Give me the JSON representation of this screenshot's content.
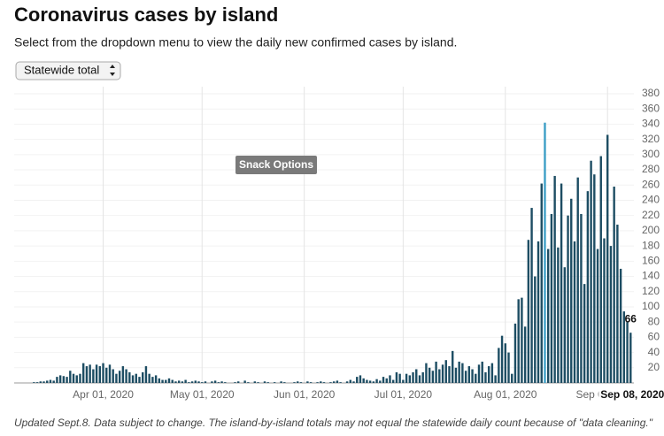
{
  "header": {
    "title": "Coronavirus cases by island",
    "subtitle": "Select from the dropdown menu to view the daily new confirmed cases by island."
  },
  "dropdown": {
    "selected": "Statewide total"
  },
  "snack_button": "Snack Options",
  "footnote": "Updated Sept.8. Data subject to change. The island-by-island totals may not equal the statewide daily count because of \"data cleaning.\"",
  "chart_data": {
    "type": "bar",
    "x": [
      "2020-03-06",
      "2020-03-07",
      "2020-03-08",
      "2020-03-09",
      "2020-03-10",
      "2020-03-11",
      "2020-03-12",
      "2020-03-13",
      "2020-03-14",
      "2020-03-15",
      "2020-03-16",
      "2020-03-17",
      "2020-03-18",
      "2020-03-19",
      "2020-03-20",
      "2020-03-21",
      "2020-03-22",
      "2020-03-23",
      "2020-03-24",
      "2020-03-25",
      "2020-03-26",
      "2020-03-27",
      "2020-03-28",
      "2020-03-29",
      "2020-03-30",
      "2020-03-31",
      "2020-04-01",
      "2020-04-02",
      "2020-04-03",
      "2020-04-04",
      "2020-04-05",
      "2020-04-06",
      "2020-04-07",
      "2020-04-08",
      "2020-04-09",
      "2020-04-10",
      "2020-04-11",
      "2020-04-12",
      "2020-04-13",
      "2020-04-14",
      "2020-04-15",
      "2020-04-16",
      "2020-04-17",
      "2020-04-18",
      "2020-04-19",
      "2020-04-20",
      "2020-04-21",
      "2020-04-22",
      "2020-04-23",
      "2020-04-24",
      "2020-04-25",
      "2020-04-26",
      "2020-04-27",
      "2020-04-28",
      "2020-04-29",
      "2020-04-30",
      "2020-05-01",
      "2020-05-02",
      "2020-05-03",
      "2020-05-04",
      "2020-05-05",
      "2020-05-06",
      "2020-05-07",
      "2020-05-08",
      "2020-05-09",
      "2020-05-10",
      "2020-05-11",
      "2020-05-12",
      "2020-05-13",
      "2020-05-14",
      "2020-05-15",
      "2020-05-16",
      "2020-05-17",
      "2020-05-18",
      "2020-05-19",
      "2020-05-20",
      "2020-05-21",
      "2020-05-22",
      "2020-05-23",
      "2020-05-24",
      "2020-05-25",
      "2020-05-26",
      "2020-05-27",
      "2020-05-28",
      "2020-05-29",
      "2020-05-30",
      "2020-05-31",
      "2020-06-01",
      "2020-06-02",
      "2020-06-03",
      "2020-06-04",
      "2020-06-05",
      "2020-06-06",
      "2020-06-07",
      "2020-06-08",
      "2020-06-09",
      "2020-06-10",
      "2020-06-11",
      "2020-06-12",
      "2020-06-13",
      "2020-06-14",
      "2020-06-15",
      "2020-06-16",
      "2020-06-17",
      "2020-06-18",
      "2020-06-19",
      "2020-06-20",
      "2020-06-21",
      "2020-06-22",
      "2020-06-23",
      "2020-06-24",
      "2020-06-25",
      "2020-06-26",
      "2020-06-27",
      "2020-06-28",
      "2020-06-29",
      "2020-06-30",
      "2020-07-01",
      "2020-07-02",
      "2020-07-03",
      "2020-07-04",
      "2020-07-05",
      "2020-07-06",
      "2020-07-07",
      "2020-07-08",
      "2020-07-09",
      "2020-07-10",
      "2020-07-11",
      "2020-07-12",
      "2020-07-13",
      "2020-07-14",
      "2020-07-15",
      "2020-07-16",
      "2020-07-17",
      "2020-07-18",
      "2020-07-19",
      "2020-07-20",
      "2020-07-21",
      "2020-07-22",
      "2020-07-23",
      "2020-07-24",
      "2020-07-25",
      "2020-07-26",
      "2020-07-27",
      "2020-07-28",
      "2020-07-29",
      "2020-07-30",
      "2020-07-31",
      "2020-08-01",
      "2020-08-02",
      "2020-08-03",
      "2020-08-04",
      "2020-08-05",
      "2020-08-06",
      "2020-08-07",
      "2020-08-08",
      "2020-08-09",
      "2020-08-10",
      "2020-08-11",
      "2020-08-12",
      "2020-08-13",
      "2020-08-14",
      "2020-08-15",
      "2020-08-16",
      "2020-08-17",
      "2020-08-18",
      "2020-08-19",
      "2020-08-20",
      "2020-08-21",
      "2020-08-22",
      "2020-08-23",
      "2020-08-24",
      "2020-08-25",
      "2020-08-26",
      "2020-08-27",
      "2020-08-28",
      "2020-08-29",
      "2020-08-30",
      "2020-08-31",
      "2020-09-01",
      "2020-09-02",
      "2020-09-03",
      "2020-09-04",
      "2020-09-05",
      "2020-09-06",
      "2020-09-07",
      "2020-09-08"
    ],
    "values": [
      0,
      0,
      0,
      0,
      0,
      1,
      1,
      2,
      2,
      3,
      4,
      3,
      8,
      10,
      9,
      8,
      16,
      12,
      10,
      12,
      26,
      22,
      24,
      18,
      24,
      22,
      26,
      20,
      24,
      18,
      12,
      16,
      22,
      18,
      14,
      10,
      12,
      8,
      14,
      22,
      12,
      8,
      10,
      6,
      4,
      4,
      6,
      4,
      2,
      3,
      2,
      4,
      1,
      2,
      3,
      2,
      1,
      2,
      0,
      2,
      3,
      1,
      2,
      1,
      0,
      0,
      1,
      2,
      0,
      3,
      1,
      0,
      2,
      1,
      0,
      2,
      1,
      0,
      1,
      0,
      2,
      1,
      0,
      0,
      1,
      2,
      1,
      0,
      2,
      1,
      0,
      1,
      2,
      1,
      0,
      1,
      2,
      3,
      1,
      0,
      2,
      4,
      2,
      8,
      10,
      6,
      4,
      3,
      2,
      5,
      3,
      8,
      6,
      10,
      4,
      14,
      12,
      4,
      12,
      10,
      14,
      18,
      10,
      14,
      26,
      20,
      16,
      28,
      18,
      24,
      30,
      22,
      42,
      20,
      28,
      26,
      16,
      22,
      18,
      12,
      24,
      28,
      14,
      22,
      26,
      10,
      46,
      62,
      52,
      40,
      12,
      78,
      110,
      112,
      74,
      188,
      230,
      140,
      186,
      262,
      342,
      176,
      222,
      272,
      178,
      262,
      152,
      220,
      242,
      186,
      270,
      222,
      130,
      252,
      292,
      274,
      176,
      298,
      190,
      326,
      180,
      258,
      208,
      150,
      94,
      80,
      66
    ],
    "color": "#1d4d63",
    "highlight": {
      "x": "2020-08-13",
      "color": "#3d9fc6"
    },
    "annotation": "Sep 08, 2020",
    "xlim": [
      "2020-03-05",
      "2020-09-09"
    ],
    "xticks": [
      {
        "value": "2020-04-01",
        "label": "Apr 01, 2020"
      },
      {
        "value": "2020-05-01",
        "label": "May 01, 2020"
      },
      {
        "value": "2020-06-01",
        "label": "Jun 01, 2020"
      },
      {
        "value": "2020-07-01",
        "label": "Jul 01, 2020"
      },
      {
        "value": "2020-08-01",
        "label": "Aug 01, 2020"
      },
      {
        "value": "2020-09-01",
        "label": "Sep 01, 2020"
      }
    ],
    "ylim": [
      0,
      380
    ],
    "yticks": [
      20,
      40,
      60,
      80,
      100,
      120,
      140,
      160,
      180,
      200,
      220,
      240,
      260,
      280,
      300,
      320,
      340,
      360,
      380
    ],
    "grid": true
  }
}
